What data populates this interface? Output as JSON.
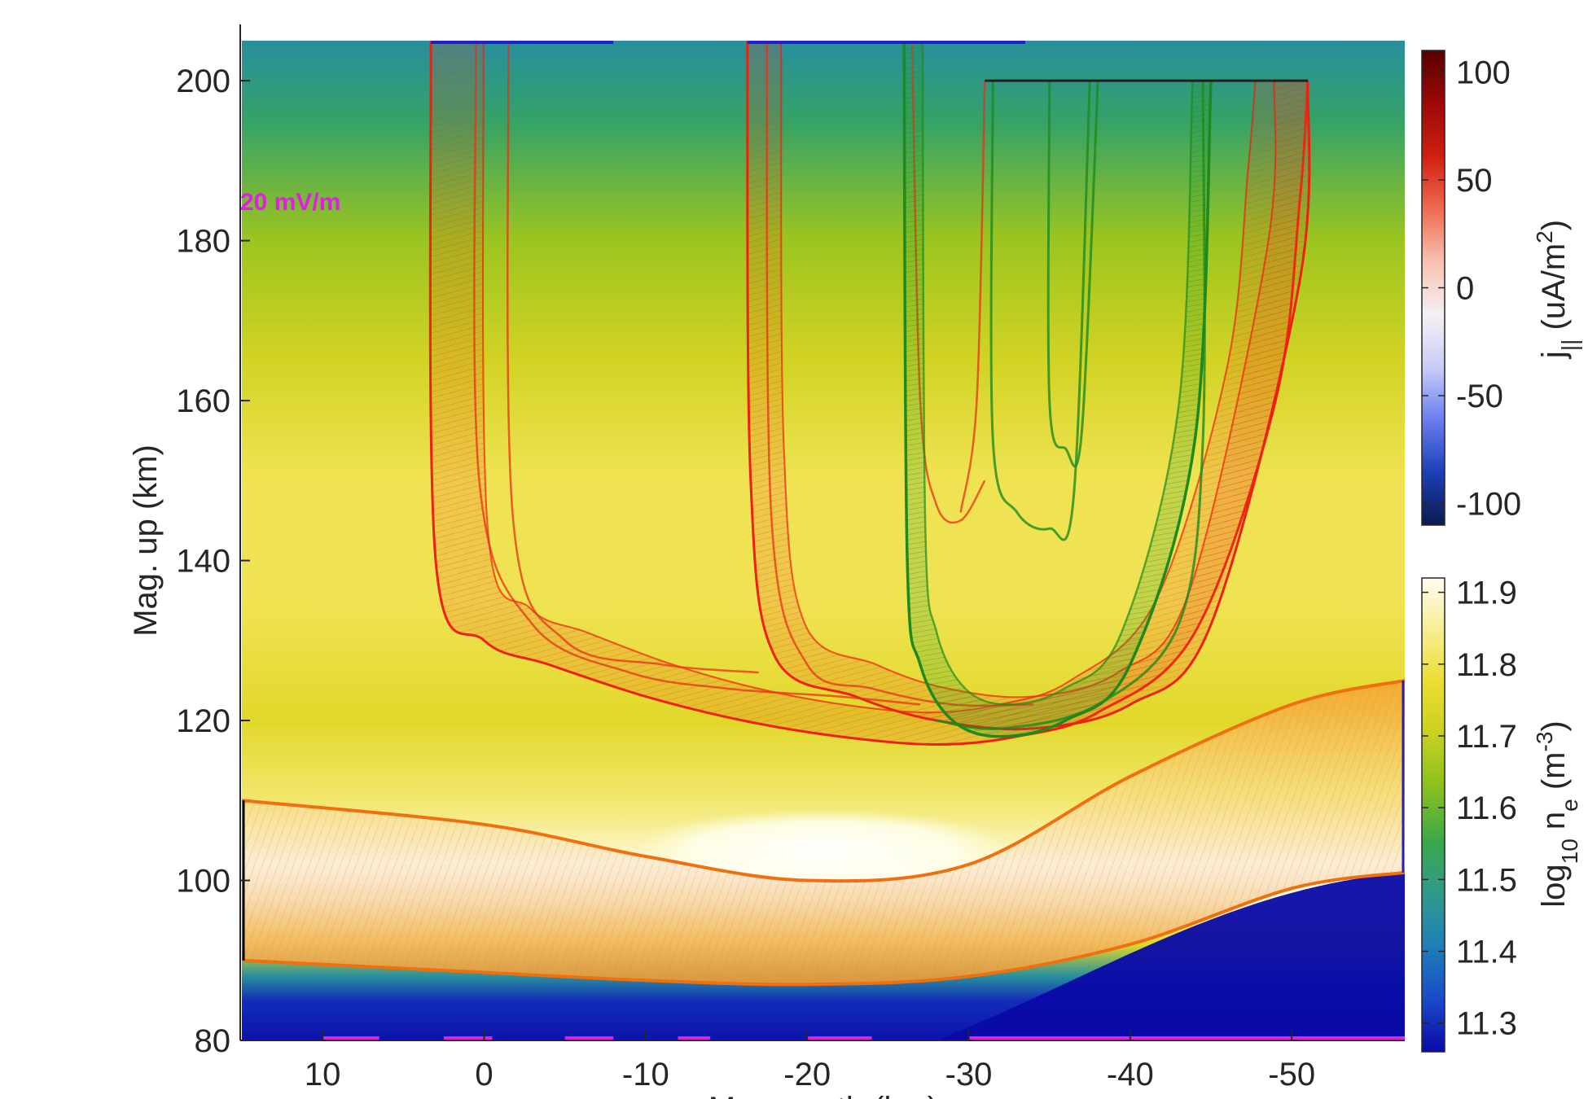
{
  "chart_data": {
    "type": "heatmap",
    "xlabel": "Mag. north (km)",
    "ylabel": "Mag. up (km)",
    "xlim": [
      15,
      -57
    ],
    "ylim": [
      80,
      205
    ],
    "xticks": [
      10,
      0,
      -10,
      -20,
      -30,
      -40,
      -50
    ],
    "yticks": [
      80,
      100,
      120,
      140,
      160,
      180,
      200
    ],
    "xtick_labels": [
      "10",
      "0",
      "-10",
      "-20",
      "-30",
      "-40",
      "-50"
    ],
    "ytick_labels": [
      "80",
      "100",
      "120",
      "140",
      "160",
      "180",
      "200"
    ],
    "annotation": {
      "text": "20 mV/m",
      "color": "#e020e0"
    },
    "background_density_profile": {
      "description_units": "log10 ne (m^-3)",
      "altitude_km": [
        80,
        85,
        88,
        92,
        97,
        101,
        104,
        110,
        120,
        135,
        150,
        165,
        180,
        195,
        205
      ],
      "log10_ne": [
        11.27,
        11.3,
        11.45,
        11.75,
        11.9,
        11.92,
        11.88,
        11.82,
        11.75,
        11.8,
        11.8,
        11.72,
        11.65,
        11.52,
        11.45
      ]
    },
    "colorbars": [
      {
        "name": "j_parallel",
        "label_main": "j",
        "label_sub": "||",
        "label_rest": " (uA/m",
        "label_sup": "2",
        "label_end": ")",
        "range": [
          -110,
          110
        ],
        "ticks": [
          100,
          50,
          0,
          -50,
          -100
        ],
        "tick_labels": [
          "100",
          "50",
          "0",
          "-50",
          "-100"
        ],
        "colors": [
          "#0b1a4d",
          "#1c3fb8",
          "#6a7ef0",
          "#c9cdf6",
          "#f5f0f5",
          "#f7c0b0",
          "#ef6a50",
          "#d01f10",
          "#9a0a05",
          "#5a0000"
        ]
      },
      {
        "name": "log_ne",
        "label_main": "log",
        "label_sub": "10",
        "label_rest": " n",
        "label_sub2": "e",
        "label_rest2": " (m",
        "label_sup": "-3",
        "label_end": ")",
        "range": [
          11.26,
          11.92
        ],
        "ticks": [
          11.9,
          11.8,
          11.7,
          11.6,
          11.5,
          11.4,
          11.3
        ],
        "tick_labels": [
          "11.9",
          "11.8",
          "11.7",
          "11.6",
          "11.5",
          "11.4",
          "11.3"
        ],
        "colors": [
          "#0a0aa8",
          "#1a4ac8",
          "#1e7fb8",
          "#2f9a8a",
          "#3aa84a",
          "#88c020",
          "#c8d020",
          "#ecdc30",
          "#f6ee90",
          "#fffcf0"
        ]
      }
    ],
    "series": [
      {
        "name": "",
        "color": "#ee2010",
        "kind": "red-u-1",
        "outline_x": [
          3.3,
          3,
          0,
          -4,
          -10,
          -16,
          -22,
          -28,
          -33,
          -38,
          -44,
          -49,
          -50.5,
          -51
        ],
        "outline_y": [
          205,
          140,
          130,
          127,
          123,
          120,
          118,
          117,
          118,
          121,
          131,
          160,
          185,
          200
        ]
      },
      {
        "name": "",
        "color": "#ee2010",
        "kind": "red-u-2",
        "outline_x": [
          -16.3,
          -16.5,
          -18,
          -23,
          -28,
          -34,
          -40,
          -45,
          -50.5,
          -51
        ],
        "outline_y": [
          205,
          150,
          128,
          123,
          120,
          119,
          122,
          132,
          175,
          200
        ]
      },
      {
        "name": "",
        "color": "#1e8a1e",
        "kind": "green-u",
        "outline_x": [
          -26,
          -26.2,
          -27,
          -29,
          -32,
          -36,
          -40,
          -44,
          -45
        ],
        "outline_y": [
          205,
          140,
          127,
          120,
          118,
          120,
          127,
          155,
          200
        ]
      },
      {
        "name": "",
        "color": "#f08020",
        "kind": "orange-band",
        "upper_x": [
          15,
          0,
          -10,
          -20,
          -30,
          -40,
          -50,
          -57
        ],
        "upper_y": [
          110,
          107,
          103,
          100,
          102,
          113,
          122,
          125
        ],
        "lower_x": [
          15,
          0,
          -10,
          -20,
          -30,
          -40,
          -50,
          -57
        ],
        "lower_y": [
          90,
          88.5,
          87.5,
          87,
          88,
          92,
          99,
          101
        ]
      }
    ]
  }
}
